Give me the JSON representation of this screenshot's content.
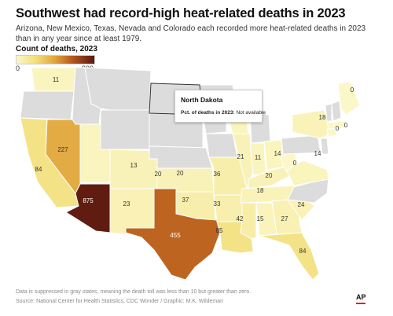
{
  "title": "Southwest had record-high heat-related deaths in 2023",
  "subtitle": "Arizona, New Mexico, Texas, Nevada and Colorado each recorded more heat-related deaths in 2023 than in any year since at least 1979.",
  "legend": {
    "title": "Count of deaths, 2023",
    "min": "0",
    "max": "900"
  },
  "tooltip": {
    "state": "North Dakota",
    "label": "Pct. of deaths in 2023:",
    "value": "Not available"
  },
  "footnote": "Data is suppressed in gray states, meaning the death toll was less than 10 but greater than zero.",
  "source": "Source: National Center for Health Statistics, CDC Wonder / Graphic: M.K. Wildeman",
  "logo": "AP",
  "colors": {
    "suppressed": "#dcdcdc",
    "low": "#fbf7c8",
    "high": "#5a1810",
    "state_border": "#ffffff",
    "highlight_border": "#333333"
  },
  "chart_data": {
    "type": "choropleth",
    "value_name": "Count of deaths, 2023",
    "scale": [
      0,
      900
    ],
    "states": [
      {
        "state": "Washington",
        "value": 11
      },
      {
        "state": "California",
        "value": 84
      },
      {
        "state": "Nevada",
        "value": 227
      },
      {
        "state": "Arizona",
        "value": 875
      },
      {
        "state": "New Mexico",
        "value": 23
      },
      {
        "state": "Texas",
        "value": 455
      },
      {
        "state": "Colorado",
        "value": 20
      },
      {
        "state": "Utah",
        "value": 13
      },
      {
        "state": "Kansas",
        "value": 20
      },
      {
        "state": "Oklahoma",
        "value": 37
      },
      {
        "state": "Missouri",
        "value": 36
      },
      {
        "state": "Arkansas",
        "value": 33
      },
      {
        "state": "Louisiana",
        "value": 85
      },
      {
        "state": "Mississippi",
        "value": 42
      },
      {
        "state": "Alabama",
        "value": 15
      },
      {
        "state": "Georgia",
        "value": 27
      },
      {
        "state": "Florida",
        "value": 84
      },
      {
        "state": "South Carolina",
        "value": 24
      },
      {
        "state": "Tennessee",
        "value": 18
      },
      {
        "state": "Kentucky",
        "value": 20
      },
      {
        "state": "Illinois",
        "value": 21
      },
      {
        "state": "Indiana",
        "value": 11
      },
      {
        "state": "Ohio",
        "value": 14
      },
      {
        "state": "West Virginia",
        "value": 0
      },
      {
        "state": "Virginia",
        "value": 14
      },
      {
        "state": "Wisconsin",
        "value": 14
      },
      {
        "state": "New York",
        "value": 18
      },
      {
        "state": "Maine",
        "value": 0
      },
      {
        "state": "Massachusetts",
        "value": 0
      },
      {
        "state": "Connecticut",
        "value": 0
      },
      {
        "state": "North Dakota",
        "value": null
      }
    ]
  }
}
